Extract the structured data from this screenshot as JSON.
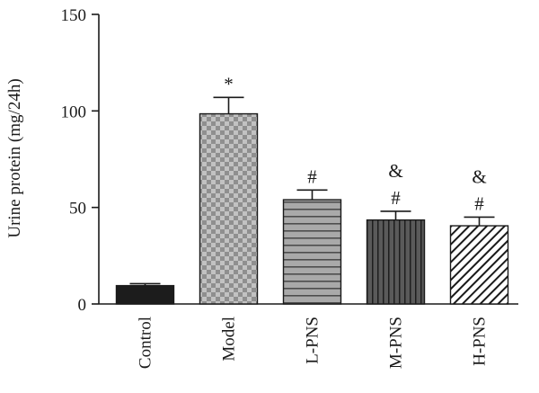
{
  "chart_data": {
    "type": "bar",
    "title": "",
    "xlabel": "",
    "ylabel": "Urine protein (mg/24h)",
    "ylim": [
      0,
      150
    ],
    "yticks": [
      0,
      50,
      100,
      150
    ],
    "grid": false,
    "categories": [
      "Control",
      "Model",
      "L-PNS",
      "M-PNS",
      "H-PNS"
    ],
    "values": [
      9.5,
      98.5,
      54,
      43.5,
      40.5
    ],
    "errors": [
      1,
      8.5,
      5,
      4.5,
      4.5
    ],
    "fills": [
      "solid-black",
      "checkerboard-gray",
      "horizontal-lines-gray",
      "vertical-lines-dark",
      "diagonal-hatch-white"
    ],
    "annotations": [
      [],
      [
        "*"
      ],
      [
        "#"
      ],
      [
        "#",
        "&"
      ],
      [
        "#",
        "&"
      ]
    ]
  }
}
